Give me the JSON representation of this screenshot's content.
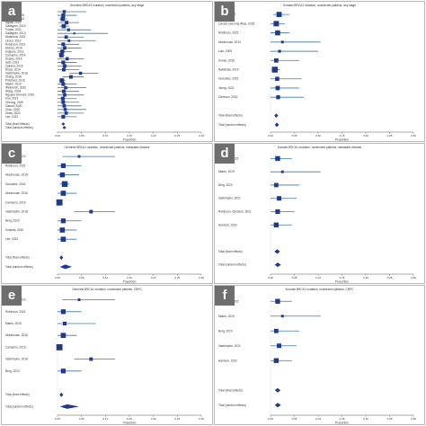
{
  "chart_data": [
    {
      "panel": "a",
      "type": "forest",
      "title": "Germline BRCA1 mutation, unselected patients, any stage",
      "xlabel": "Proportion",
      "xlim": [
        0,
        0.3
      ],
      "xticks": [
        "0.00",
        "0.05",
        "0.10",
        "0.15",
        "0.20",
        "0.25",
        "0.30"
      ],
      "studies": [
        {
          "label": "Alsina, 2021",
          "est": 0.014,
          "lo": 0.0,
          "hi": 0.06
        },
        {
          "label": "Arboretti, 2006",
          "est": 0.012,
          "lo": 0.0,
          "hi": 0.04
        },
        {
          "label": "Cybulski, 2014",
          "est": 0.011,
          "lo": 0.004,
          "hi": 0.02
        },
        {
          "label": "Ngata, 2019",
          "est": 0.019,
          "lo": 0.002,
          "hi": 0.045
        },
        {
          "label": "Gallagher, 2010",
          "est": 0.013,
          "lo": 0.004,
          "hi": 0.025
        },
        {
          "label": "Fonda, 2021",
          "est": 0.023,
          "lo": 0.0,
          "hi": 0.07
        },
        {
          "label": "Gallagher, 2013",
          "est": 0.035,
          "lo": 0.0,
          "hi": 0.105
        },
        {
          "label": "Stolarova, 2022",
          "est": 0.018,
          "lo": 0.0,
          "hi": 0.055
        },
        {
          "label": "Lindor, 2012",
          "est": 0.024,
          "lo": 0.0,
          "hi": 0.08
        },
        {
          "label": "Robinson, 2013",
          "est": 0.012,
          "lo": 0.0,
          "hi": 0.045
        },
        {
          "label": "Mohan, 2019",
          "est": 0.015,
          "lo": 0.0,
          "hi": 0.05
        },
        {
          "label": "Kuijpers, 2013",
          "est": 0.01,
          "lo": 0.0,
          "hi": 0.03
        },
        {
          "label": "Camacho, 2014",
          "est": 0.008,
          "lo": 0.003,
          "hi": 0.015
        },
        {
          "label": "Kluska, 2018",
          "est": 0.02,
          "lo": 0.0,
          "hi": 0.055
        },
        {
          "label": "Salo, 2019",
          "est": 0.012,
          "lo": 0.0,
          "hi": 0.04
        },
        {
          "label": "Zakaria, 2016",
          "est": 0.015,
          "lo": 0.0,
          "hi": 0.05
        },
        {
          "label": "Rossi, 2014",
          "est": 0.013,
          "lo": 0.0,
          "hi": 0.045
        },
        {
          "label": "Vastrimphe, 2018",
          "est": 0.048,
          "lo": 0.025,
          "hi": 0.085
        },
        {
          "label": "Zhang, 2018",
          "est": 0.028,
          "lo": 0.01,
          "hi": 0.055
        },
        {
          "label": "Pritchard, 2016",
          "est": 0.009,
          "lo": 0.004,
          "hi": 0.016
        },
        {
          "label": "Mader, 2010",
          "est": 0.012,
          "lo": 0.0,
          "hi": 0.04
        },
        {
          "label": "Weinreich, 2020",
          "est": 0.017,
          "lo": 0.0,
          "hi": 0.06
        },
        {
          "label": "Wang, 2018",
          "est": 0.013,
          "lo": 0.0,
          "hi": 0.045
        },
        {
          "label": "Nguyen-Dumont, 2020",
          "est": 0.015,
          "lo": 0.0,
          "hi": 0.055
        },
        {
          "label": "Fan, 2021",
          "est": 0.011,
          "lo": 0.0,
          "hi": 0.04
        },
        {
          "label": "Cheung, 2020",
          "est": 0.012,
          "lo": 0.0,
          "hi": 0.045
        },
        {
          "label": "Zlamal, 2020",
          "est": 0.014,
          "lo": 0.0,
          "hi": 0.05
        },
        {
          "label": "Zhou, 2022",
          "est": 0.016,
          "lo": 0.0,
          "hi": 0.06
        },
        {
          "label": "Shaw, 2022",
          "est": 0.018,
          "lo": 0.0,
          "hi": 0.055
        },
        {
          "label": "Lee, 2022",
          "est": 0.012,
          "lo": 0.0,
          "hi": 0.04
        }
      ],
      "pooled": [
        {
          "label": "Total (fixed effects)",
          "est": 0.012,
          "lo": 0.01,
          "hi": 0.014
        },
        {
          "label": "Total (random effects)",
          "est": 0.014,
          "lo": 0.011,
          "hi": 0.018
        }
      ]
    },
    {
      "panel": "b",
      "type": "forest",
      "title": "Somatic BRCA1 mutation, unselected patients, any stage",
      "xlabel": "Proportion",
      "xlim": [
        0,
        0.3
      ],
      "xticks": [
        "0.00",
        "0.05",
        "0.10",
        "0.15",
        "0.20",
        "0.25",
        "0.30"
      ],
      "studies": [
        {
          "label": "Grasso, 2012",
          "est": 0.018,
          "lo": 0.005,
          "hi": 0.04
        },
        {
          "label": "Cancer Genome Atlas, 2015",
          "est": 0.012,
          "lo": 0.0,
          "hi": 0.03
        },
        {
          "label": "Robinson, 2015",
          "est": 0.015,
          "lo": 0.0,
          "hi": 0.04
        },
        {
          "label": "Abeshouse, 2013",
          "est": 0.025,
          "lo": 0.0,
          "hi": 0.105
        },
        {
          "label": "Lohr, 2009",
          "est": 0.019,
          "lo": 0.0,
          "hi": 0.1
        },
        {
          "label": "Kumar, 2016",
          "est": 0.012,
          "lo": 0.0,
          "hi": 0.06
        },
        {
          "label": "Nakahata, 2019",
          "est": 0.009,
          "lo": 0.002,
          "hi": 0.02
        },
        {
          "label": "Gonzalez, 2019",
          "est": 0.014,
          "lo": 0.0,
          "hi": 0.065
        },
        {
          "label": "Jeong, 2021",
          "est": 0.015,
          "lo": 0.0,
          "hi": 0.06
        },
        {
          "label": "Clemson, 2020",
          "est": 0.016,
          "lo": 0.0,
          "hi": 0.07
        }
      ],
      "pooled": [
        {
          "label": "Total (fixed effects)",
          "est": 0.012,
          "lo": 0.008,
          "hi": 0.016
        },
        {
          "label": "Total (random effects)",
          "est": 0.013,
          "lo": 0.009,
          "hi": 0.018
        }
      ]
    },
    {
      "panel": "c",
      "type": "forest",
      "title": "Germline BRCA1 mutation, unselected patients, metastatic disease",
      "xlabel": "Proportion",
      "xlim": [
        0,
        0.3
      ],
      "xticks": [
        "0.00",
        "0.05",
        "0.10",
        "0.15",
        "0.20",
        "0.25",
        "0.30"
      ],
      "studies": [
        {
          "label": "Gallagher, 2010",
          "est": 0.045,
          "lo": 0.01,
          "hi": 0.12
        },
        {
          "label": "Robinson, 2015",
          "est": 0.012,
          "lo": 0.0,
          "hi": 0.05
        },
        {
          "label": "Abeshouse, 2015",
          "est": 0.01,
          "lo": 0.0,
          "hi": 0.045
        },
        {
          "label": "Gonzalez, 2016",
          "est": 0.015,
          "lo": 0.005,
          "hi": 0.025
        },
        {
          "label": "Abeshouse, 2016",
          "est": 0.012,
          "lo": 0.0,
          "hi": 0.04
        },
        {
          "label": "Camacho, 2016",
          "est": 0.004,
          "lo": 0.0,
          "hi": 0.01
        },
        {
          "label": "Vastrimphe, 2018",
          "est": 0.07,
          "lo": 0.035,
          "hi": 0.12
        },
        {
          "label": "Berg, 2020",
          "est": 0.012,
          "lo": 0.0,
          "hi": 0.05
        },
        {
          "label": "Schmitz, 2020",
          "est": 0.01,
          "lo": 0.0,
          "hi": 0.04
        },
        {
          "label": "Lee, 2022",
          "est": 0.012,
          "lo": 0.0,
          "hi": 0.04
        }
      ],
      "pooled": [
        {
          "label": "Total (fixed effects)",
          "est": 0.008,
          "lo": 0.005,
          "hi": 0.011
        },
        {
          "label": "Total (random effects)",
          "est": 0.016,
          "lo": 0.005,
          "hi": 0.03
        }
      ]
    },
    {
      "panel": "d",
      "type": "forest",
      "title": "Somatic BRCA1 mutation, unselected patients, metastatic disease",
      "xlabel": "Proportion",
      "xlim": [
        0,
        0.3
      ],
      "xticks": [
        "0.00",
        "0.05",
        "0.10",
        "0.15",
        "0.20",
        "0.25",
        "0.30"
      ],
      "studies": [
        {
          "label": "Robinson, 2015",
          "est": 0.015,
          "lo": 0.0,
          "hi": 0.045
        },
        {
          "label": "Mateo, 2019",
          "est": 0.025,
          "lo": 0.0,
          "hi": 0.105
        },
        {
          "label": "Berg, 2020",
          "est": 0.012,
          "lo": 0.0,
          "hi": 0.06
        },
        {
          "label": "Vastrimphe, 2021",
          "est": 0.018,
          "lo": 0.0,
          "hi": 0.055
        },
        {
          "label": "Robinson, Clemson, 2021",
          "est": 0.015,
          "lo": 0.0,
          "hi": 0.05
        },
        {
          "label": "Harrison, 2022",
          "est": 0.012,
          "lo": 0.0,
          "hi": 0.045
        }
      ],
      "pooled": [
        {
          "label": "Total (fixed effects)",
          "est": 0.014,
          "lo": 0.008,
          "hi": 0.02
        },
        {
          "label": "Total (random effects)",
          "est": 0.015,
          "lo": 0.009,
          "hi": 0.022
        }
      ]
    },
    {
      "panel": "e",
      "type": "forest",
      "title": "Germline BRCA1 mutation, unselected patients, CRPC",
      "xlabel": "Proportion",
      "xlim": [
        0,
        0.3
      ],
      "xticks": [
        "0.00",
        "0.05",
        "0.10",
        "0.15",
        "0.20",
        "0.25",
        "0.30"
      ],
      "studies": [
        {
          "label": "Gallagher, 2010",
          "est": 0.045,
          "lo": 0.01,
          "hi": 0.12
        },
        {
          "label": "Robinson, 2015",
          "est": 0.012,
          "lo": 0.0,
          "hi": 0.05
        },
        {
          "label": "Mateo, 2015",
          "est": 0.015,
          "lo": 0.0,
          "hi": 0.08
        },
        {
          "label": "Abeshouse, 2016",
          "est": 0.012,
          "lo": 0.0,
          "hi": 0.04
        },
        {
          "label": "Camacho, 2016",
          "est": 0.004,
          "lo": 0.0,
          "hi": 0.01
        },
        {
          "label": "Vastrimphe, 2018",
          "est": 0.07,
          "lo": 0.035,
          "hi": 0.12
        },
        {
          "label": "Berg, 2020",
          "est": 0.012,
          "lo": 0.0,
          "hi": 0.05
        }
      ],
      "pooled": [
        {
          "label": "Total (fixed effects)",
          "est": 0.008,
          "lo": 0.005,
          "hi": 0.012
        },
        {
          "label": "Total (random effects)",
          "est": 0.02,
          "lo": 0.005,
          "hi": 0.045
        }
      ]
    },
    {
      "panel": "f",
      "type": "forest",
      "title": "Somatic BRCA1 mutation, unselected patients, CRPC",
      "xlabel": "Proportion",
      "xlim": [
        0,
        0.3
      ],
      "xticks": [
        "0.00",
        "0.05",
        "0.10",
        "0.15",
        "0.20",
        "0.25",
        "0.30"
      ],
      "studies": [
        {
          "label": "Robinson, 2015",
          "est": 0.015,
          "lo": 0.0,
          "hi": 0.045
        },
        {
          "label": "Mateo, 2019",
          "est": 0.025,
          "lo": 0.0,
          "hi": 0.105
        },
        {
          "label": "Berg, 2020",
          "est": 0.012,
          "lo": 0.0,
          "hi": 0.06
        },
        {
          "label": "Vastrimphe, 2021",
          "est": 0.018,
          "lo": 0.0,
          "hi": 0.055
        },
        {
          "label": "Harrison, 2022",
          "est": 0.012,
          "lo": 0.0,
          "hi": 0.045
        }
      ],
      "pooled": [
        {
          "label": "Total (fixed effects)",
          "est": 0.015,
          "lo": 0.009,
          "hi": 0.021
        },
        {
          "label": "Total (random effects)",
          "est": 0.015,
          "lo": 0.009,
          "hi": 0.022
        }
      ]
    }
  ],
  "style": {
    "bar_color": "#3f78a8",
    "marker_color": "#1f3a8a",
    "axis_color": "#555555",
    "label_bg": "#6e6e6e"
  }
}
